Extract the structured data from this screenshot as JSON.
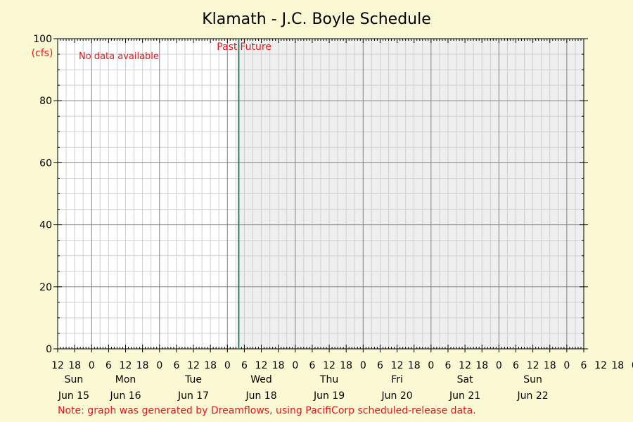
{
  "chart_data": {
    "type": "line",
    "title": "Klamath - J.C. Boyle Schedule",
    "ylabel": "(cfs)",
    "ylim": [
      0,
      100
    ],
    "yticks": [
      0,
      20,
      40,
      60,
      80,
      100
    ],
    "xlim": [
      "2025-06-15T12:00",
      "2025-06-23T06:00"
    ],
    "hour_ticks": [
      "12",
      "18",
      "0",
      "6",
      "12",
      "18",
      "0",
      "6",
      "12",
      "18",
      "0",
      "6",
      "12",
      "18",
      "0",
      "6",
      "12",
      "18",
      "0",
      "6",
      "12",
      "18",
      "0",
      "6",
      "12",
      "18",
      "0",
      "6",
      "12",
      "18",
      "0",
      "6",
      "12",
      "18",
      "0",
      "6"
    ],
    "days": [
      {
        "weekday": "Sun",
        "date": "Jun 15"
      },
      {
        "weekday": "Mon",
        "date": "Jun 16"
      },
      {
        "weekday": "Tue",
        "date": "Jun 17"
      },
      {
        "weekday": "Wed",
        "date": "Jun 18"
      },
      {
        "weekday": "Thu",
        "date": "Jun 19"
      },
      {
        "weekday": "Fri",
        "date": "Jun 20"
      },
      {
        "weekday": "Sat",
        "date": "Jun 21"
      },
      {
        "weekday": "Sun",
        "date": "Jun 22"
      }
    ],
    "now": "2025-06-18T04:00",
    "past_label": "Past",
    "future_label": "Future",
    "no_data_text": "No data available",
    "series": [],
    "grid": true,
    "colors": {
      "background": "#fbf9d3",
      "future_shade": "#efefef",
      "now_line": "#2e7d5b",
      "annotation": "#e8141e"
    }
  },
  "note": "Note: graph was generated by Dreamflows, using PacifiCorp scheduled-release data."
}
